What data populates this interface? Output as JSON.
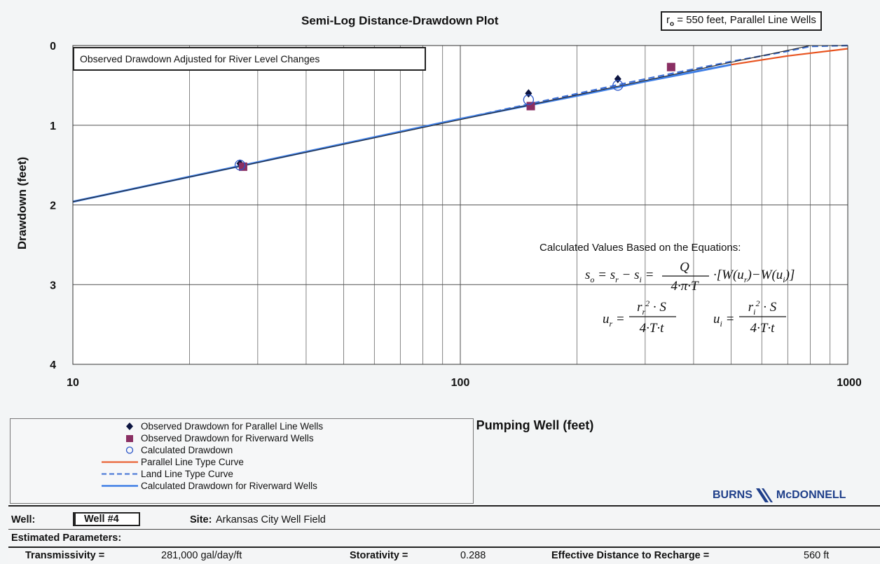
{
  "chart_data": {
    "type": "scatter",
    "title": "Semi-Log Distance-Drawdown Plot",
    "xlabel": "Distance from the Pumping Well (feet)",
    "ylabel": "Drawdown (feet)",
    "xscale": "log",
    "xlim": [
      10,
      1000
    ],
    "ylim": [
      4,
      0
    ],
    "y_inverted": true,
    "xticks": [
      "10",
      "100",
      "1000"
    ],
    "yticks": [
      "0",
      "1",
      "2",
      "3",
      "4"
    ],
    "grid": true,
    "series": [
      {
        "name": "Observed Drawdown for Parallel Line Wells",
        "marker": "diamond",
        "color": "#0c1440",
        "points": [
          [
            27,
            1.48
          ],
          [
            150,
            0.6
          ],
          [
            255,
            0.42
          ]
        ]
      },
      {
        "name": "Observed Drawdown for Riverward Wells",
        "marker": "square",
        "color": "#8a2f63",
        "points": [
          [
            27.5,
            1.52
          ],
          [
            152,
            0.76
          ],
          [
            350,
            0.27
          ]
        ]
      },
      {
        "name": "Calculated Drawdown",
        "marker": "open-circle",
        "color": "#2a55c8",
        "points": [
          [
            27,
            1.5
          ],
          [
            150,
            0.68
          ],
          [
            255,
            0.5
          ]
        ]
      },
      {
        "name": "Parallel Line Type Curve",
        "line": "solid",
        "color": "#e8531f",
        "points": [
          [
            10,
            1.96
          ],
          [
            100,
            0.92
          ],
          [
            300,
            0.45
          ],
          [
            500,
            0.24
          ],
          [
            700,
            0.13
          ],
          [
            1000,
            0.04
          ]
        ]
      },
      {
        "name": "Land Line Type Curve",
        "line": "dashed",
        "color": "#3d6fd4",
        "points": [
          [
            10,
            1.96
          ],
          [
            100,
            0.92
          ],
          [
            300,
            0.42
          ],
          [
            500,
            0.2
          ],
          [
            700,
            0.07
          ],
          [
            800,
            0.01
          ],
          [
            1000,
            0.0
          ]
        ]
      },
      {
        "name": "Calculated Drawdown for Riverward Wells",
        "line": "solid",
        "color": "#3f7fe6",
        "points": [
          [
            10,
            1.96
          ],
          [
            100,
            0.92
          ],
          [
            200,
            0.63
          ],
          [
            300,
            0.45
          ],
          [
            500,
            0.24
          ]
        ]
      },
      {
        "name": "",
        "line": "thin-solid",
        "color": "#222222",
        "points": [
          [
            10,
            1.96
          ],
          [
            800,
            0.0
          ]
        ]
      }
    ]
  },
  "header": {
    "parameter_box": "= 550 feet, Parallel Line Wells",
    "parameter_symbol": "r",
    "parameter_sub": "o"
  },
  "annotation": "Observed Drawdown Adjusted for River Level Changes",
  "equations": {
    "intro": "Calculated Values Based on the Equations:"
  },
  "legend": [
    "Observed Drawdown for Parallel Line Wells",
    "Observed Drawdown for Riverward Wells",
    "Calculated Drawdown",
    "Parallel Line Type Curve",
    "Land Line Type Curve",
    "Calculated Drawdown for Riverward Wells"
  ],
  "logo": {
    "left": "BURNS",
    "right": "McDONNELL",
    "color": "#1f3f8a"
  },
  "footer": {
    "well_label": "Well:",
    "well_value": "Well #4",
    "site_label": "Site:",
    "site_value": "Arkansas City Well Field",
    "params_heading": "Estimated Parameters:",
    "transmissivity_label": "Transmissivity =",
    "transmissivity_value": "281,000  gal/day/ft",
    "storativity_label": "Storativity =",
    "storativity_value": "0.288",
    "recharge_label": "Effective Distance to Recharge =",
    "recharge_value": "560 ft"
  }
}
